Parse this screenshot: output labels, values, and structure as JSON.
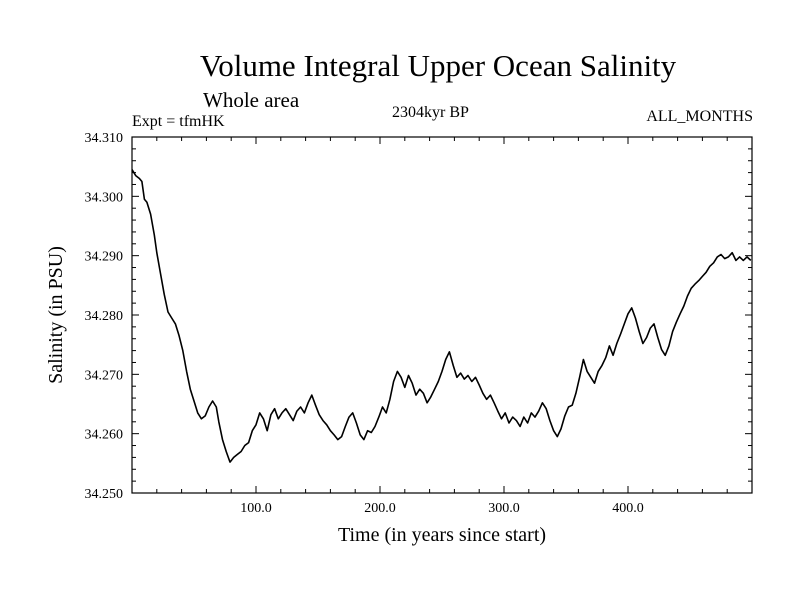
{
  "chart_data": {
    "type": "line",
    "title": "Volume Integral Upper Ocean Salinity",
    "subtitle": "Whole area",
    "annotations": {
      "experiment": "Expt = tfmHK",
      "period": "2304kyr BP",
      "months": "ALL_MONTHS"
    },
    "xlabel": "Time (in years since start)",
    "ylabel": "Salinity (in PSU)",
    "xlim": [
      0,
      500
    ],
    "ylim": [
      34.25,
      34.31
    ],
    "xticks": [
      100,
      200,
      300,
      400
    ],
    "xtick_labels": [
      "100.0",
      "200.0",
      "300.0",
      "400.0"
    ],
    "yticks": [
      34.25,
      34.26,
      34.27,
      34.28,
      34.29,
      34.3,
      34.31
    ],
    "ytick_labels": [
      "34.250",
      "34.260",
      "34.270",
      "34.280",
      "34.290",
      "34.300",
      "34.310"
    ],
    "series": [
      {
        "name": "salinity",
        "points": [
          [
            0,
            34.3045
          ],
          [
            3,
            34.3035
          ],
          [
            6,
            34.303
          ],
          [
            8,
            34.3025
          ],
          [
            10,
            34.2995
          ],
          [
            12,
            34.299
          ],
          [
            15,
            34.297
          ],
          [
            18,
            34.2935
          ],
          [
            20,
            34.2905
          ],
          [
            23,
            34.287
          ],
          [
            26,
            34.2835
          ],
          [
            29,
            34.2805
          ],
          [
            32,
            34.2795
          ],
          [
            35,
            34.2785
          ],
          [
            38,
            34.2765
          ],
          [
            41,
            34.274
          ],
          [
            44,
            34.2705
          ],
          [
            47,
            34.2675
          ],
          [
            50,
            34.2655
          ],
          [
            53,
            34.2635
          ],
          [
            56,
            34.2625
          ],
          [
            59,
            34.263
          ],
          [
            62,
            34.2645
          ],
          [
            65,
            34.2655
          ],
          [
            68,
            34.2645
          ],
          [
            70,
            34.262
          ],
          [
            73,
            34.259
          ],
          [
            76,
            34.257
          ],
          [
            79,
            34.2552
          ],
          [
            82,
            34.256
          ],
          [
            85,
            34.2565
          ],
          [
            88,
            34.257
          ],
          [
            91,
            34.258
          ],
          [
            94,
            34.2585
          ],
          [
            97,
            34.2605
          ],
          [
            100,
            34.2615
          ],
          [
            103,
            34.2635
          ],
          [
            106,
            34.2625
          ],
          [
            109,
            34.2605
          ],
          [
            112,
            34.2632
          ],
          [
            115,
            34.2642
          ],
          [
            118,
            34.2625
          ],
          [
            121,
            34.2635
          ],
          [
            124,
            34.2642
          ],
          [
            127,
            34.2632
          ],
          [
            130,
            34.2622
          ],
          [
            133,
            34.2638
          ],
          [
            136,
            34.2645
          ],
          [
            139,
            34.2635
          ],
          [
            142,
            34.2652
          ],
          [
            145,
            34.2665
          ],
          [
            148,
            34.2648
          ],
          [
            151,
            34.2632
          ],
          [
            154,
            34.2622
          ],
          [
            157,
            34.2615
          ],
          [
            160,
            34.2605
          ],
          [
            163,
            34.2598
          ],
          [
            166,
            34.259
          ],
          [
            169,
            34.2595
          ],
          [
            172,
            34.2612
          ],
          [
            175,
            34.2628
          ],
          [
            178,
            34.2635
          ],
          [
            181,
            34.2618
          ],
          [
            184,
            34.2598
          ],
          [
            187,
            34.259
          ],
          [
            190,
            34.2605
          ],
          [
            193,
            34.2602
          ],
          [
            196,
            34.2612
          ],
          [
            199,
            34.2628
          ],
          [
            202,
            34.2645
          ],
          [
            205,
            34.2635
          ],
          [
            208,
            34.2658
          ],
          [
            211,
            34.2688
          ],
          [
            214,
            34.2705
          ],
          [
            217,
            34.2695
          ],
          [
            220,
            34.2678
          ],
          [
            223,
            34.2698
          ],
          [
            226,
            34.2685
          ],
          [
            229,
            34.2665
          ],
          [
            232,
            34.2675
          ],
          [
            235,
            34.2668
          ],
          [
            238,
            34.2652
          ],
          [
            241,
            34.2662
          ],
          [
            244,
            34.2675
          ],
          [
            247,
            34.2688
          ],
          [
            250,
            34.2705
          ],
          [
            253,
            34.2725
          ],
          [
            256,
            34.2738
          ],
          [
            259,
            34.2715
          ],
          [
            262,
            34.2695
          ],
          [
            265,
            34.2702
          ],
          [
            268,
            34.2692
          ],
          [
            271,
            34.2698
          ],
          [
            274,
            34.2688
          ],
          [
            277,
            34.2695
          ],
          [
            280,
            34.2682
          ],
          [
            283,
            34.2668
          ],
          [
            286,
            34.2658
          ],
          [
            289,
            34.2665
          ],
          [
            292,
            34.2652
          ],
          [
            295,
            34.2638
          ],
          [
            298,
            34.2625
          ],
          [
            301,
            34.2635
          ],
          [
            304,
            34.2618
          ],
          [
            307,
            34.2628
          ],
          [
            310,
            34.2622
          ],
          [
            313,
            34.2612
          ],
          [
            316,
            34.2628
          ],
          [
            319,
            34.2618
          ],
          [
            322,
            34.2635
          ],
          [
            325,
            34.2628
          ],
          [
            328,
            34.2638
          ],
          [
            331,
            34.2652
          ],
          [
            334,
            34.2642
          ],
          [
            337,
            34.2622
          ],
          [
            340,
            34.2605
          ],
          [
            343,
            34.2595
          ],
          [
            346,
            34.2608
          ],
          [
            349,
            34.263
          ],
          [
            352,
            34.2645
          ],
          [
            355,
            34.2648
          ],
          [
            358,
            34.2668
          ],
          [
            361,
            34.2695
          ],
          [
            364,
            34.2725
          ],
          [
            367,
            34.2705
          ],
          [
            370,
            34.2695
          ],
          [
            373,
            34.2685
          ],
          [
            376,
            34.2705
          ],
          [
            379,
            34.2715
          ],
          [
            382,
            34.2728
          ],
          [
            385,
            34.2748
          ],
          [
            388,
            34.2732
          ],
          [
            391,
            34.2752
          ],
          [
            394,
            34.2768
          ],
          [
            397,
            34.2785
          ],
          [
            400,
            34.2802
          ],
          [
            403,
            34.2812
          ],
          [
            406,
            34.2795
          ],
          [
            409,
            34.2772
          ],
          [
            412,
            34.2752
          ],
          [
            415,
            34.2762
          ],
          [
            418,
            34.2778
          ],
          [
            421,
            34.2785
          ],
          [
            424,
            34.2762
          ],
          [
            427,
            34.2742
          ],
          [
            430,
            34.2732
          ],
          [
            433,
            34.2748
          ],
          [
            436,
            34.2772
          ],
          [
            439,
            34.2788
          ],
          [
            442,
            34.2802
          ],
          [
            445,
            34.2815
          ],
          [
            448,
            34.2832
          ],
          [
            451,
            34.2845
          ],
          [
            454,
            34.2852
          ],
          [
            457,
            34.2858
          ],
          [
            460,
            34.2865
          ],
          [
            463,
            34.2872
          ],
          [
            466,
            34.2882
          ],
          [
            469,
            34.2888
          ],
          [
            472,
            34.2898
          ],
          [
            475,
            34.2902
          ],
          [
            478,
            34.2895
          ],
          [
            481,
            34.2898
          ],
          [
            484,
            34.2905
          ],
          [
            487,
            34.2892
          ],
          [
            490,
            34.2898
          ],
          [
            493,
            34.2892
          ],
          [
            496,
            34.2898
          ],
          [
            499,
            34.2892
          ]
        ]
      }
    ]
  }
}
